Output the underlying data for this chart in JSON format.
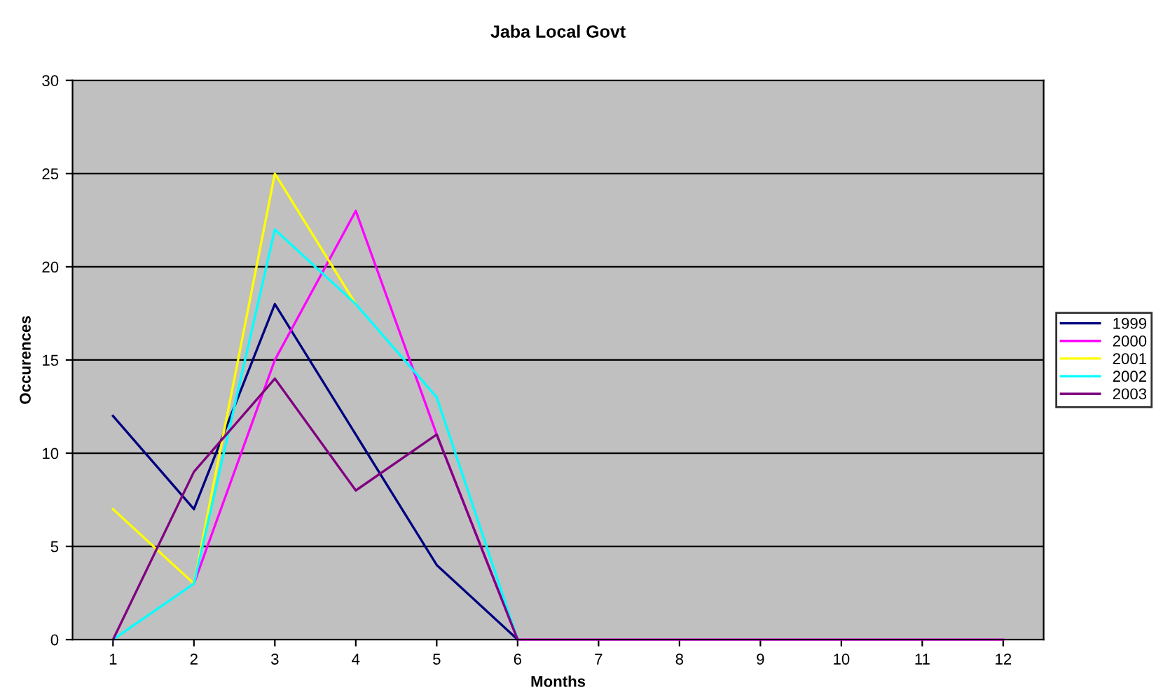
{
  "chart_data": {
    "type": "line",
    "title": "Jaba Local Govt",
    "xlabel": "Months",
    "ylabel": "Occurences",
    "categories": [
      "1",
      "2",
      "3",
      "4",
      "5",
      "6",
      "7",
      "8",
      "9",
      "10",
      "11",
      "12"
    ],
    "series": [
      {
        "name": "1999",
        "color": "#000080",
        "values": [
          12,
          7,
          18,
          11,
          4,
          0,
          null,
          null,
          null,
          null,
          null,
          null
        ]
      },
      {
        "name": "2000",
        "color": "#ff00ff",
        "values": [
          null,
          3,
          15,
          23,
          11,
          0,
          0,
          0,
          0,
          0,
          0,
          0
        ]
      },
      {
        "name": "2001",
        "color": "#ffff00",
        "values": [
          7,
          3,
          25,
          18,
          null,
          null,
          null,
          null,
          null,
          null,
          null,
          null
        ]
      },
      {
        "name": "2002",
        "color": "#00ffff",
        "values": [
          0,
          3,
          22,
          18,
          13,
          0,
          null,
          null,
          null,
          null,
          null,
          null
        ]
      },
      {
        "name": "2003",
        "color": "#800080",
        "values": [
          0,
          9,
          14,
          8,
          11,
          0,
          null,
          null,
          null,
          null,
          null,
          null
        ]
      }
    ],
    "ylim": [
      0,
      30
    ],
    "yticks": [
      0,
      5,
      10,
      15,
      20,
      25,
      30
    ],
    "grid": "y",
    "legend": "right",
    "marker": "none",
    "line_style": "solid"
  }
}
